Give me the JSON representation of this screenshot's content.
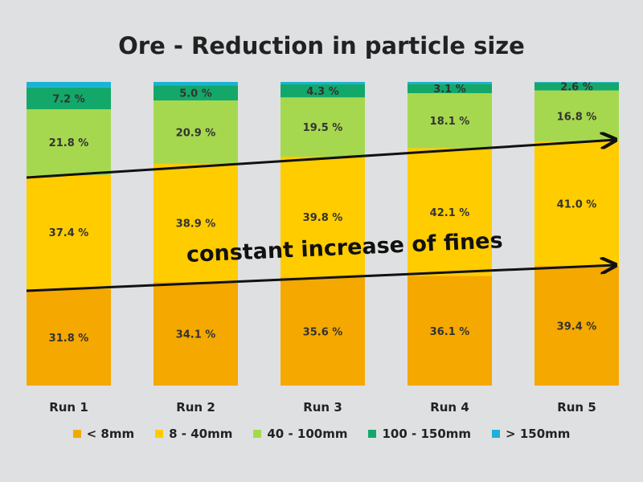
{
  "chart_data": {
    "type": "bar",
    "stacked": true,
    "title": "Ore - Reduction in particle size",
    "categories": [
      "Run 1",
      "Run 2",
      "Run 3",
      "Run 4",
      "Run 5"
    ],
    "ylim": [
      0,
      100
    ],
    "grid": false,
    "legend_position": "bottom",
    "series": [
      {
        "name": "< 8mm",
        "color": "#f5a800",
        "values": [
          31.8,
          34.1,
          35.6,
          36.1,
          39.4
        ],
        "labels": [
          "31.8 %",
          "34.1 %",
          "35.6 %",
          "36.1 %",
          "39.4 %"
        ]
      },
      {
        "name": "8 - 40mm",
        "color": "#ffcc00",
        "values": [
          37.4,
          38.9,
          39.8,
          42.1,
          41.0
        ],
        "labels": [
          "37.4 %",
          "38.9 %",
          "39.8 %",
          "42.1 %",
          "41.0 %"
        ]
      },
      {
        "name": "40 - 100mm",
        "color": "#a6d84f",
        "values": [
          21.8,
          20.9,
          19.5,
          18.1,
          16.8
        ],
        "labels": [
          "21.8 %",
          "20.9 %",
          "19.5 %",
          "18.1 %",
          "16.8 %"
        ]
      },
      {
        "name": "100 - 150mm",
        "color": "#13a86a",
        "values": [
          7.2,
          5.0,
          4.3,
          3.1,
          2.6
        ],
        "labels": [
          "7.2 %",
          "5.0 %",
          "4.3 %",
          "3.1 %",
          "2.6 %"
        ]
      },
      {
        "name": "> 150mm",
        "color": "#1ab3d6",
        "values": [
          1.8,
          1.1,
          0.8,
          0.6,
          0.2
        ],
        "labels": [
          "",
          "",
          "",
          "",
          ""
        ]
      }
    ],
    "annotations": [
      {
        "text": "constant increase of fines"
      }
    ]
  }
}
